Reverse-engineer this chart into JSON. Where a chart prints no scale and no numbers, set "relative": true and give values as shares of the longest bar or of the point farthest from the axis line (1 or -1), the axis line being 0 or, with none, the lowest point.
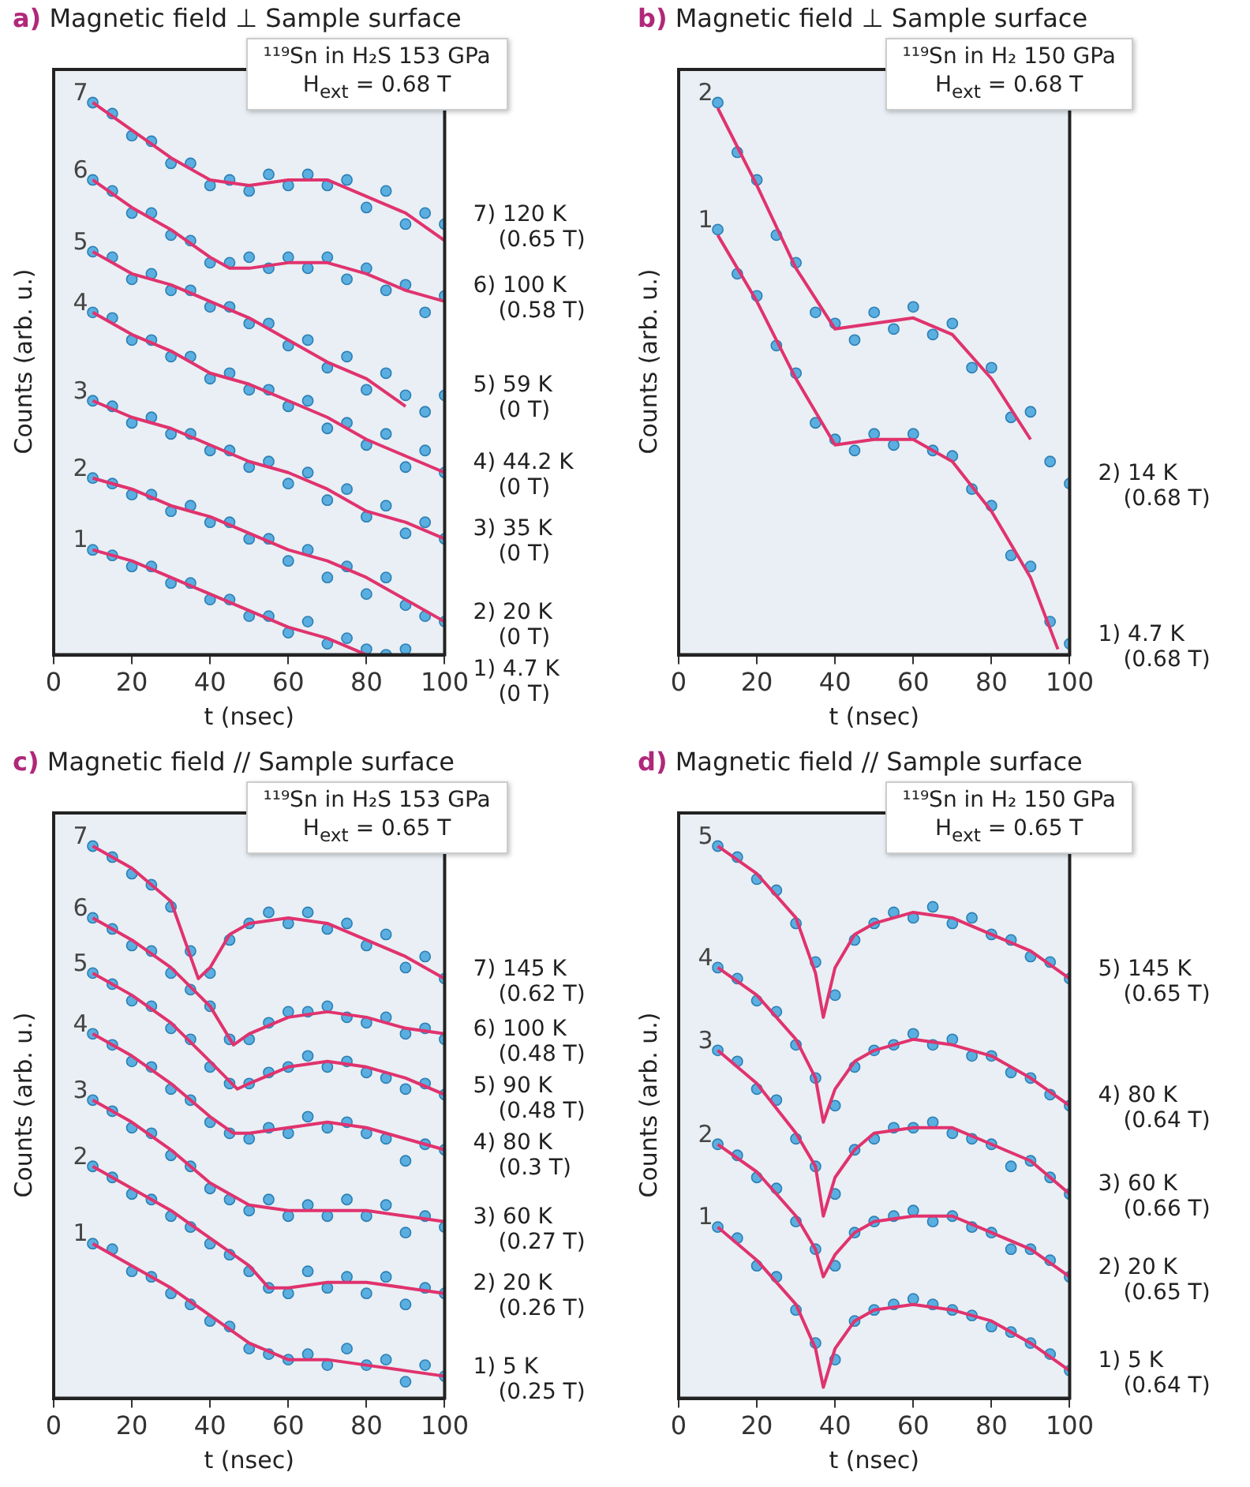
{
  "chart_data": [
    {
      "type": "scatter",
      "title": "a) Magnetic field ⊥ Sample surface",
      "xlabel": "t (nsec)",
      "ylabel": "Counts (arb. u.)",
      "relative": true,
      "xlim": [
        0,
        100
      ],
      "xticks": [
        0,
        20,
        40,
        60,
        80,
        100
      ],
      "legend": false,
      "x": [
        10,
        15,
        20,
        25,
        30,
        35,
        40,
        45,
        50,
        55,
        60,
        65,
        70,
        75,
        80,
        85,
        90,
        95,
        100
      ],
      "annotations": [
        "¹¹⁹Sn in H₂S  153 GPa",
        "H$_{ext}$ = 0.68 T",
        "7",
        "6",
        "5",
        "4",
        "3",
        "2",
        "1"
      ],
      "series": [
        {
          "name": "7) 120 K (0.65 T)",
          "type": "scatter",
          "marker": "circle",
          "color": "#5aafe0",
          "values": [
            1.0,
            0.98,
            0.94,
            0.93,
            0.89,
            0.89,
            0.85,
            0.86,
            0.84,
            0.87,
            0.85,
            0.87,
            0.85,
            0.86,
            0.81,
            0.84,
            0.78,
            0.8,
            0.78
          ]
        },
        {
          "type": "line",
          "color": "#e0336e",
          "x": [
            10,
            20,
            30,
            40,
            50,
            60,
            70,
            80,
            90,
            100
          ],
          "values": [
            1.0,
            0.95,
            0.9,
            0.86,
            0.85,
            0.86,
            0.86,
            0.83,
            0.8,
            0.75
          ]
        },
        {
          "name": "6) 100 K (0.58 T)",
          "type": "scatter",
          "marker": "circle",
          "color": "#5aafe0",
          "values": [
            0.86,
            0.84,
            0.8,
            0.8,
            0.76,
            0.75,
            0.71,
            0.71,
            0.72,
            0.7,
            0.72,
            0.7,
            0.72,
            0.68,
            0.7,
            0.66,
            0.67,
            0.62,
            0.65
          ]
        },
        {
          "type": "line",
          "color": "#e0336e",
          "x": [
            10,
            20,
            30,
            40,
            45,
            50,
            60,
            70,
            80,
            90,
            100
          ],
          "values": [
            0.86,
            0.81,
            0.77,
            0.72,
            0.7,
            0.7,
            0.71,
            0.71,
            0.69,
            0.66,
            0.64
          ]
        },
        {
          "name": "5) 59 K (0 T)",
          "type": "scatter",
          "marker": "circle",
          "color": "#5aafe0",
          "values": [
            0.73,
            0.72,
            0.68,
            0.69,
            0.66,
            0.66,
            0.63,
            0.63,
            0.6,
            0.6,
            0.56,
            0.57,
            0.52,
            0.54,
            0.48,
            0.51,
            0.47,
            0.44,
            0.47
          ]
        },
        {
          "type": "line",
          "color": "#e0336e",
          "x": [
            10,
            20,
            30,
            40,
            50,
            60,
            70,
            80,
            90
          ],
          "values": [
            0.73,
            0.69,
            0.67,
            0.64,
            0.61,
            0.57,
            0.53,
            0.5,
            0.45
          ]
        },
        {
          "name": "4) 44.2 K (0 T)",
          "type": "scatter",
          "marker": "circle",
          "color": "#5aafe0",
          "values": [
            0.62,
            0.61,
            0.57,
            0.57,
            0.54,
            0.54,
            0.5,
            0.51,
            0.48,
            0.48,
            0.45,
            0.46,
            0.41,
            0.42,
            0.38,
            0.4,
            0.34,
            0.37,
            0.33
          ]
        },
        {
          "type": "line",
          "color": "#e0336e",
          "x": [
            10,
            20,
            30,
            40,
            50,
            60,
            70,
            80,
            90,
            100
          ],
          "values": [
            0.62,
            0.58,
            0.55,
            0.51,
            0.49,
            0.46,
            0.43,
            0.39,
            0.36,
            0.33
          ]
        },
        {
          "name": "3) 35 K (0 T)",
          "type": "scatter",
          "marker": "circle",
          "color": "#5aafe0",
          "values": [
            0.46,
            0.45,
            0.42,
            0.43,
            0.4,
            0.4,
            0.37,
            0.37,
            0.34,
            0.35,
            0.31,
            0.33,
            0.28,
            0.3,
            0.25,
            0.27,
            0.22,
            0.24,
            0.21
          ]
        },
        {
          "type": "line",
          "color": "#e0336e",
          "x": [
            10,
            20,
            30,
            40,
            50,
            60,
            70,
            80,
            90,
            100
          ],
          "values": [
            0.46,
            0.43,
            0.41,
            0.38,
            0.35,
            0.33,
            0.3,
            0.26,
            0.24,
            0.21
          ]
        },
        {
          "name": "2) 20 K (0 T)",
          "type": "scatter",
          "marker": "circle",
          "color": "#5aafe0",
          "values": [
            0.32,
            0.31,
            0.29,
            0.29,
            0.26,
            0.27,
            0.24,
            0.24,
            0.21,
            0.21,
            0.17,
            0.19,
            0.14,
            0.16,
            0.11,
            0.14,
            0.09,
            0.07,
            0.06
          ]
        },
        {
          "type": "line",
          "color": "#e0336e",
          "x": [
            10,
            20,
            30,
            40,
            50,
            60,
            70,
            80,
            90,
            100
          ],
          "values": [
            0.32,
            0.3,
            0.27,
            0.25,
            0.22,
            0.19,
            0.17,
            0.14,
            0.1,
            0.06
          ]
        },
        {
          "name": "1) 4.7 K (0 T)",
          "type": "scatter",
          "marker": "circle",
          "color": "#5aafe0",
          "values": [
            0.19,
            0.18,
            0.16,
            0.16,
            0.13,
            0.13,
            0.1,
            0.1,
            0.07,
            0.07,
            0.04,
            0.06,
            0.02,
            0.03,
            0.01,
            0,
            0.01,
            null,
            null
          ]
        },
        {
          "type": "line",
          "color": "#e0336e",
          "x": [
            10,
            20,
            30,
            40,
            50,
            60,
            70,
            80
          ],
          "values": [
            0.19,
            0.17,
            0.14,
            0.11,
            0.08,
            0.05,
            0.03,
            0
          ]
        }
      ]
    },
    {
      "type": "scatter",
      "title": "b) Magnetic field ⊥ Sample surface",
      "xlabel": "t (nsec)",
      "ylabel": "Counts (arb. u.)",
      "relative": true,
      "xlim": [
        0,
        100
      ],
      "xticks": [
        0,
        20,
        40,
        60,
        80,
        100
      ],
      "legend": false,
      "x": [
        10,
        15,
        20,
        25,
        30,
        35,
        40,
        45,
        50,
        55,
        60,
        65,
        70,
        75,
        80,
        85,
        90,
        95,
        100
      ],
      "annotations": [
        "¹¹⁹Sn in H₂  150 GPa",
        "H$_{ext}$ = 0.68 T",
        "2",
        "1"
      ],
      "series": [
        {
          "name": "2) 14 K (0.68 T)",
          "type": "scatter",
          "marker": "circle",
          "color": "#5aafe0",
          "values": [
            1.0,
            0.91,
            0.86,
            0.76,
            0.71,
            0.62,
            0.6,
            0.57,
            0.62,
            0.59,
            0.63,
            0.58,
            0.6,
            0.52,
            0.52,
            0.43,
            0.44,
            0.35,
            0.31
          ]
        },
        {
          "type": "line",
          "color": "#e0336e",
          "x": [
            10,
            20,
            30,
            40,
            50,
            60,
            70,
            80,
            90
          ],
          "values": [
            0.99,
            0.85,
            0.7,
            0.59,
            0.6,
            0.61,
            0.58,
            0.5,
            0.39
          ]
        },
        {
          "name": "1) 4.7 K (0.68 T)",
          "type": "scatter",
          "marker": "circle",
          "color": "#5aafe0",
          "values": [
            0.77,
            0.69,
            0.65,
            0.56,
            0.51,
            0.42,
            0.39,
            0.37,
            0.4,
            0.38,
            0.4,
            0.37,
            0.36,
            0.3,
            0.27,
            0.18,
            0.16,
            0.06,
            0.02
          ]
        },
        {
          "type": "line",
          "color": "#e0336e",
          "x": [
            10,
            20,
            30,
            40,
            50,
            60,
            70,
            80,
            90,
            97
          ],
          "values": [
            0.76,
            0.64,
            0.5,
            0.38,
            0.39,
            0.39,
            0.35,
            0.26,
            0.14,
            0.01
          ]
        }
      ]
    },
    {
      "type": "scatter",
      "title": "c) Magnetic field // Sample surface",
      "xlabel": "t (nsec)",
      "ylabel": "Counts (arb. u.)",
      "relative": true,
      "xlim": [
        0,
        100
      ],
      "xticks": [
        0,
        20,
        40,
        60,
        80,
        100
      ],
      "legend": false,
      "x": [
        10,
        15,
        20,
        25,
        30,
        35,
        40,
        45,
        50,
        55,
        60,
        65,
        70,
        75,
        80,
        85,
        90,
        95,
        100
      ],
      "annotations": [
        "¹¹⁹Sn in H₂S  153 GPa",
        "H$_{ext}$ = 0.65 T",
        "7",
        "6",
        "5",
        "4",
        "3",
        "2",
        "1"
      ],
      "series": [
        {
          "name": "7) 145 K (0.62 T)",
          "type": "scatter",
          "marker": "circle",
          "color": "#5aafe0",
          "values": [
            1.0,
            0.98,
            0.95,
            0.93,
            0.89,
            0.81,
            0.77,
            0.83,
            0.86,
            0.88,
            0.86,
            0.88,
            0.85,
            0.86,
            0.82,
            0.84,
            0.78,
            0.8,
            0.76
          ]
        },
        {
          "type": "line",
          "color": "#e0336e",
          "x": [
            10,
            20,
            30,
            37,
            40,
            45,
            50,
            60,
            70,
            80,
            90,
            100
          ],
          "values": [
            1.0,
            0.96,
            0.9,
            0.76,
            0.78,
            0.84,
            0.86,
            0.87,
            0.86,
            0.83,
            0.8,
            0.76
          ]
        },
        {
          "name": "6) 100 K (0.48 T)",
          "type": "scatter",
          "marker": "circle",
          "color": "#5aafe0",
          "values": [
            0.87,
            0.85,
            0.82,
            0.81,
            0.77,
            0.74,
            0.71,
            0.65,
            0.65,
            0.68,
            0.7,
            0.7,
            0.71,
            0.69,
            0.68,
            0.69,
            0.66,
            0.67,
            0.65
          ]
        },
        {
          "type": "line",
          "color": "#e0336e",
          "x": [
            10,
            20,
            30,
            40,
            46,
            50,
            60,
            70,
            80,
            90,
            100
          ],
          "values": [
            0.87,
            0.83,
            0.78,
            0.71,
            0.64,
            0.66,
            0.69,
            0.7,
            0.69,
            0.67,
            0.66
          ]
        },
        {
          "name": "5) 90 K (0.48 T)",
          "type": "scatter",
          "marker": "circle",
          "color": "#5aafe0",
          "values": [
            0.77,
            0.75,
            0.72,
            0.71,
            0.67,
            0.65,
            0.6,
            0.57,
            0.57,
            0.59,
            0.6,
            0.62,
            0.6,
            0.61,
            0.59,
            0.58,
            0.56,
            0.57,
            0.55
          ]
        },
        {
          "type": "line",
          "color": "#e0336e",
          "x": [
            10,
            20,
            30,
            40,
            47,
            50,
            60,
            70,
            80,
            90,
            100
          ],
          "values": [
            0.77,
            0.73,
            0.68,
            0.61,
            0.56,
            0.57,
            0.6,
            0.61,
            0.6,
            0.58,
            0.55
          ]
        },
        {
          "name": "4) 80 K (0.3 T)",
          "type": "scatter",
          "marker": "circle",
          "color": "#5aafe0",
          "values": [
            0.66,
            0.64,
            0.61,
            0.6,
            0.56,
            0.54,
            0.5,
            0.48,
            0.47,
            0.49,
            0.48,
            0.51,
            0.49,
            0.5,
            0.48,
            0.47,
            0.43,
            0.46,
            0.45
          ]
        },
        {
          "type": "line",
          "color": "#e0336e",
          "x": [
            10,
            20,
            30,
            40,
            46,
            50,
            60,
            70,
            80,
            90,
            100
          ],
          "values": [
            0.66,
            0.62,
            0.57,
            0.51,
            0.48,
            0.48,
            0.49,
            0.5,
            0.49,
            0.47,
            0.45
          ]
        },
        {
          "name": "3) 60 K (0.27 T)",
          "type": "scatter",
          "marker": "circle",
          "color": "#5aafe0",
          "values": [
            0.54,
            0.52,
            0.49,
            0.48,
            0.44,
            0.42,
            0.38,
            0.36,
            0.34,
            0.36,
            0.33,
            0.35,
            0.33,
            0.36,
            0.33,
            0.35,
            0.3,
            0.33,
            0.31
          ]
        },
        {
          "type": "line",
          "color": "#e0336e",
          "x": [
            10,
            20,
            30,
            40,
            50,
            60,
            70,
            80,
            90,
            100
          ],
          "values": [
            0.54,
            0.5,
            0.45,
            0.39,
            0.35,
            0.34,
            0.34,
            0.34,
            0.33,
            0.32
          ]
        },
        {
          "name": "2) 20 K (0.26 T)",
          "type": "scatter",
          "marker": "circle",
          "color": "#5aafe0",
          "values": [
            0.42,
            0.4,
            0.37,
            0.36,
            0.33,
            0.31,
            0.28,
            0.26,
            0.23,
            0.2,
            0.19,
            0.23,
            0.2,
            0.22,
            0.19,
            0.22,
            0.17,
            0.2,
            0.19
          ]
        },
        {
          "type": "line",
          "color": "#e0336e",
          "x": [
            10,
            20,
            30,
            40,
            50,
            55,
            60,
            70,
            80,
            90,
            100
          ],
          "values": [
            0.42,
            0.38,
            0.34,
            0.29,
            0.24,
            0.2,
            0.2,
            0.21,
            0.21,
            0.2,
            0.19
          ]
        },
        {
          "name": "1) 5 K (0.25 T)",
          "type": "scatter",
          "marker": "circle",
          "color": "#5aafe0",
          "values": [
            0.28,
            0.27,
            0.23,
            0.22,
            0.19,
            0.17,
            0.14,
            0.13,
            0.09,
            0.08,
            0.07,
            0.08,
            0.06,
            0.09,
            0.06,
            0.07,
            0.03,
            0.06,
            0.04
          ]
        },
        {
          "type": "line",
          "color": "#e0336e",
          "x": [
            10,
            20,
            30,
            40,
            50,
            60,
            70,
            80,
            90,
            100
          ],
          "values": [
            0.28,
            0.24,
            0.2,
            0.15,
            0.1,
            0.07,
            0.07,
            0.06,
            0.05,
            0.04
          ]
        }
      ]
    },
    {
      "type": "scatter",
      "title": "d) Magnetic field // Sample surface",
      "xlabel": "t (nsec)",
      "ylabel": "Counts (arb. u.)",
      "relative": true,
      "xlim": [
        0,
        100
      ],
      "xticks": [
        0,
        20,
        40,
        60,
        80,
        100
      ],
      "legend": false,
      "x": [
        10,
        15,
        20,
        25,
        30,
        35,
        40,
        45,
        50,
        55,
        60,
        65,
        70,
        75,
        80,
        85,
        90,
        95,
        100
      ],
      "annotations": [
        "¹¹⁹Sn in H₂  150 GPa",
        "H$_{ext}$ = 0.65 T",
        "5",
        "4",
        "3",
        "2",
        "1"
      ],
      "series": [
        {
          "name": "5) 145 K (0.65 T)",
          "type": "scatter",
          "marker": "circle",
          "color": "#5aafe0",
          "values": [
            1.0,
            0.98,
            0.94,
            0.92,
            0.86,
            0.79,
            0.73,
            0.83,
            0.86,
            0.88,
            0.87,
            0.89,
            0.86,
            0.87,
            0.84,
            0.83,
            0.8,
            0.79,
            0.76
          ]
        },
        {
          "type": "line",
          "color": "#e0336e",
          "x": [
            10,
            20,
            30,
            35,
            37,
            40,
            45,
            50,
            60,
            70,
            80,
            90,
            100
          ],
          "values": [
            1.0,
            0.95,
            0.87,
            0.77,
            0.69,
            0.78,
            0.84,
            0.86,
            0.88,
            0.87,
            0.84,
            0.81,
            0.76
          ]
        },
        {
          "name": "4) 80 K (0.64 T)",
          "type": "scatter",
          "marker": "circle",
          "color": "#5aafe0",
          "values": [
            0.78,
            0.76,
            0.72,
            0.7,
            0.64,
            0.58,
            0.53,
            0.6,
            0.63,
            0.64,
            0.66,
            0.64,
            0.65,
            0.62,
            0.62,
            0.59,
            0.58,
            0.55,
            0.53
          ]
        },
        {
          "type": "line",
          "color": "#e0336e",
          "x": [
            10,
            20,
            30,
            35,
            37,
            40,
            45,
            50,
            60,
            70,
            80,
            90,
            100
          ],
          "values": [
            0.78,
            0.73,
            0.65,
            0.58,
            0.5,
            0.56,
            0.61,
            0.63,
            0.65,
            0.64,
            0.62,
            0.58,
            0.53
          ]
        },
        {
          "name": "3) 60 K (0.66 T)",
          "type": "scatter",
          "marker": "circle",
          "color": "#5aafe0",
          "values": [
            0.63,
            0.61,
            0.56,
            0.54,
            0.47,
            0.42,
            0.37,
            0.45,
            0.47,
            0.49,
            0.49,
            0.5,
            0.48,
            0.47,
            0.46,
            0.42,
            0.43,
            0.4,
            0.37
          ]
        },
        {
          "type": "line",
          "color": "#e0336e",
          "x": [
            10,
            20,
            30,
            35,
            37,
            40,
            45,
            50,
            60,
            70,
            80,
            90,
            100
          ],
          "values": [
            0.63,
            0.57,
            0.48,
            0.42,
            0.33,
            0.4,
            0.45,
            0.48,
            0.49,
            0.49,
            0.46,
            0.43,
            0.37
          ]
        },
        {
          "name": "2) 20 K (0.65 T)",
          "type": "scatter",
          "marker": "circle",
          "color": "#5aafe0",
          "values": [
            0.46,
            0.44,
            0.4,
            0.38,
            0.32,
            0.27,
            0.24,
            0.3,
            0.32,
            0.33,
            0.34,
            0.32,
            0.33,
            0.31,
            0.3,
            0.27,
            0.27,
            0.25,
            0.22
          ]
        },
        {
          "type": "line",
          "color": "#e0336e",
          "x": [
            10,
            20,
            30,
            35,
            37,
            40,
            45,
            50,
            60,
            70,
            80,
            90,
            100
          ],
          "values": [
            0.46,
            0.41,
            0.33,
            0.27,
            0.22,
            0.26,
            0.3,
            0.32,
            0.33,
            0.33,
            0.3,
            0.27,
            0.22
          ]
        },
        {
          "name": "1) 5 K (0.64 T)",
          "type": "scatter",
          "marker": "circle",
          "color": "#5aafe0",
          "values": [
            0.31,
            0.29,
            0.24,
            0.22,
            0.16,
            0.1,
            0.07,
            0.14,
            0.16,
            0.17,
            0.18,
            0.17,
            0.16,
            0.15,
            0.13,
            0.12,
            0.1,
            0.08,
            0.05
          ]
        },
        {
          "type": "line",
          "color": "#e0336e",
          "x": [
            10,
            20,
            30,
            35,
            37,
            40,
            45,
            50,
            60,
            70,
            80,
            90,
            100
          ],
          "values": [
            0.31,
            0.25,
            0.17,
            0.09,
            0.02,
            0.09,
            0.14,
            0.16,
            0.17,
            0.16,
            0.14,
            0.1,
            0.05
          ]
        }
      ]
    }
  ]
}
